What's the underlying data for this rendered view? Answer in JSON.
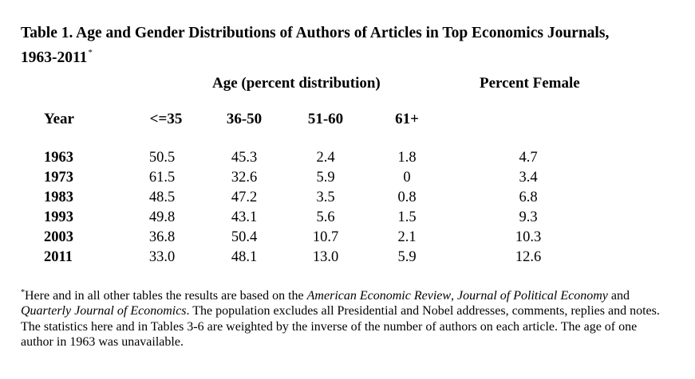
{
  "table": {
    "title": "Table 1.  Age and Gender Distributions of Authors of Articles in Top Economics Journals,",
    "title_line2": "1963-2011",
    "title_mark": "*",
    "group_header_age": "Age (percent distribution)",
    "group_header_female": "Percent Female",
    "columns": [
      "Year",
      "<=35",
      "36-50",
      "51-60",
      "61+"
    ],
    "rows": [
      {
        "year": "1963",
        "a35": "50.5",
        "a50": "45.3",
        "a60": "2.4",
        "a61": "1.8",
        "female": "4.7"
      },
      {
        "year": "1973",
        "a35": "61.5",
        "a50": "32.6",
        "a60": "5.9",
        "a61": "0",
        "female": "3.4"
      },
      {
        "year": "1983",
        "a35": "48.5",
        "a50": "47.2",
        "a60": "3.5",
        "a61": "0.8",
        "female": "6.8"
      },
      {
        "year": "1993",
        "a35": "49.8",
        "a50": "43.1",
        "a60": "5.6",
        "a61": "1.5",
        "female": "9.3"
      },
      {
        "year": "2003",
        "a35": "36.8",
        "a50": "50.4",
        "a60": "10.7",
        "a61": "2.1",
        "female": "10.3"
      },
      {
        "year": "2011",
        "a35": "33.0",
        "a50": "48.1",
        "a60": "13.0",
        "a61": "5.9",
        "female": "12.6"
      }
    ]
  },
  "footnote": {
    "mark": "*",
    "p1": "Here and in all other tables the results are based on the ",
    "j1": "American Economic Review",
    "p2": ", ",
    "j2": "Journal of Political Economy",
    "p3": " and ",
    "j3": "Quarterly Journal of Economics",
    "p4": ".  The population excludes all Presidential and Nobel addresses, comments, replies and notes. The statistics here and in Tables 3-6 are weighted by the inverse of the number of authors on each article. The age of one author in 1963 was unavailable."
  }
}
